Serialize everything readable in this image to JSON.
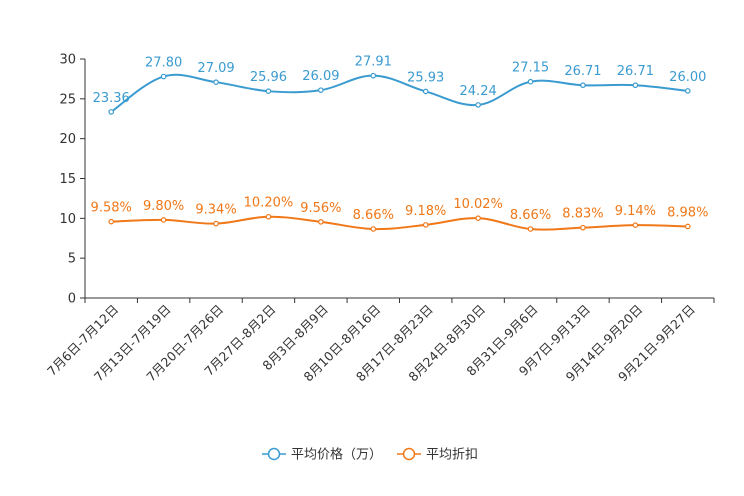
{
  "chart_data": {
    "type": "line",
    "title": "",
    "xlabel": "",
    "ylabel": "",
    "ylim": [
      0,
      30
    ],
    "yticks": [
      0,
      5,
      10,
      15,
      20,
      25,
      30
    ],
    "grid": false,
    "legend_position": "bottom-center",
    "categories": [
      "7月6日-7月12日",
      "7月13日-7月19日",
      "7月20日-7月26日",
      "7月27日-8月2日",
      "8月3日-8月9日",
      "8月10日-8月16日",
      "8月17日-8月23日",
      "8月24日-8月30日",
      "8月31日-9月6日",
      "9月7日-9月13日",
      "9月14日-9月20日",
      "9月21日-9月27日"
    ],
    "series": [
      {
        "name": "平均价格（万）",
        "color": "#3a9bd0",
        "values": [
          23.36,
          27.8,
          27.09,
          25.96,
          26.09,
          27.91,
          25.93,
          24.24,
          27.15,
          26.71,
          26.71,
          26.0
        ],
        "labels": [
          "23.36",
          "27.80",
          "27.09",
          "25.96",
          "26.09",
          "27.91",
          "25.93",
          "24.24",
          "27.15",
          "26.71",
          "26.71",
          "26.00"
        ]
      },
      {
        "name": "平均折扣",
        "color": "#f07818",
        "values": [
          9.58,
          9.8,
          9.34,
          10.2,
          9.56,
          8.66,
          9.18,
          10.02,
          8.66,
          8.83,
          9.14,
          8.98
        ],
        "labels": [
          "9.58%",
          "9.80%",
          "9.34%",
          "10.20%",
          "9.56%",
          "8.66%",
          "9.18%",
          "10.02%",
          "8.66%",
          "8.83%",
          "9.14%",
          "8.98%"
        ]
      }
    ]
  }
}
